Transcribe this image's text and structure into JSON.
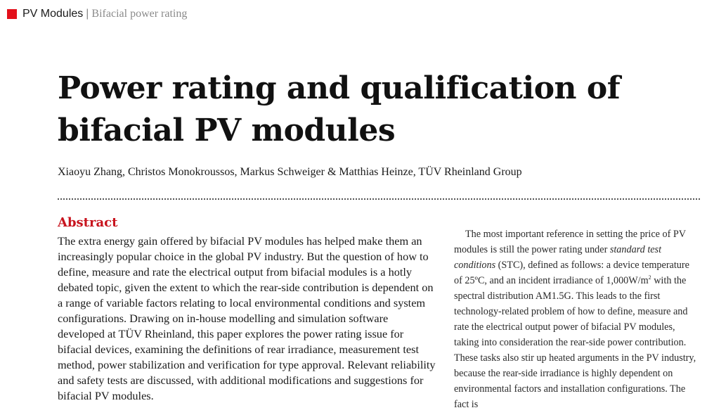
{
  "header": {
    "section": "PV Modules",
    "separator": "|",
    "topic": "Bifacial power rating"
  },
  "title": "Power rating and qualification of bifacial PV modules",
  "authors": "Xiaoyu Zhang, Christos Monokroussos, Markus Schweiger & Matthias Heinze, TÜV Rheinland Group",
  "abstract": {
    "heading": "Abstract",
    "body": "The extra energy gain offered by bifacial PV modules has helped make them an increasingly popular choice in the global PV industry. But the question of how to define, measure and rate the electrical output from bifacial modules is a hotly debated topic, given the extent to which the rear-side contribution is dependent on a range of variable factors relating to local environmental conditions and system configurations. Drawing on in-house modelling and simulation software developed at TÜV Rheinland, this paper explores the power rating issue for bifacial devices, examining the definitions of rear irradiance, measurement test method, power stabilization and verification for type approval. Relevant reliability and safety tests are discussed, with additional modifications and suggestions for bifacial PV modules."
  },
  "body_column": {
    "part1": "The most important reference in setting the price of PV modules is still the power rating under ",
    "emphasis": "standard test conditions",
    "part2": " (STC), defined as follows: a device temperature of 25ºC, and an incident irradiance of 1,000W/m",
    "superscript": "2",
    "part3": " with the spectral distribution AM1.5G. This leads to the first technology-related problem of how to define, measure and rate the electrical output power of bifacial PV modules, taking into consideration the rear-side power contribution. These tasks also stir up heated arguments in the PV industry, because the rear-side irradiance is highly dependent on environmental factors and installation configurations. The fact is"
  },
  "colors": {
    "accent": "#e3101b",
    "heading_red": "#c8141e",
    "muted_gray": "#8a8a8a"
  }
}
